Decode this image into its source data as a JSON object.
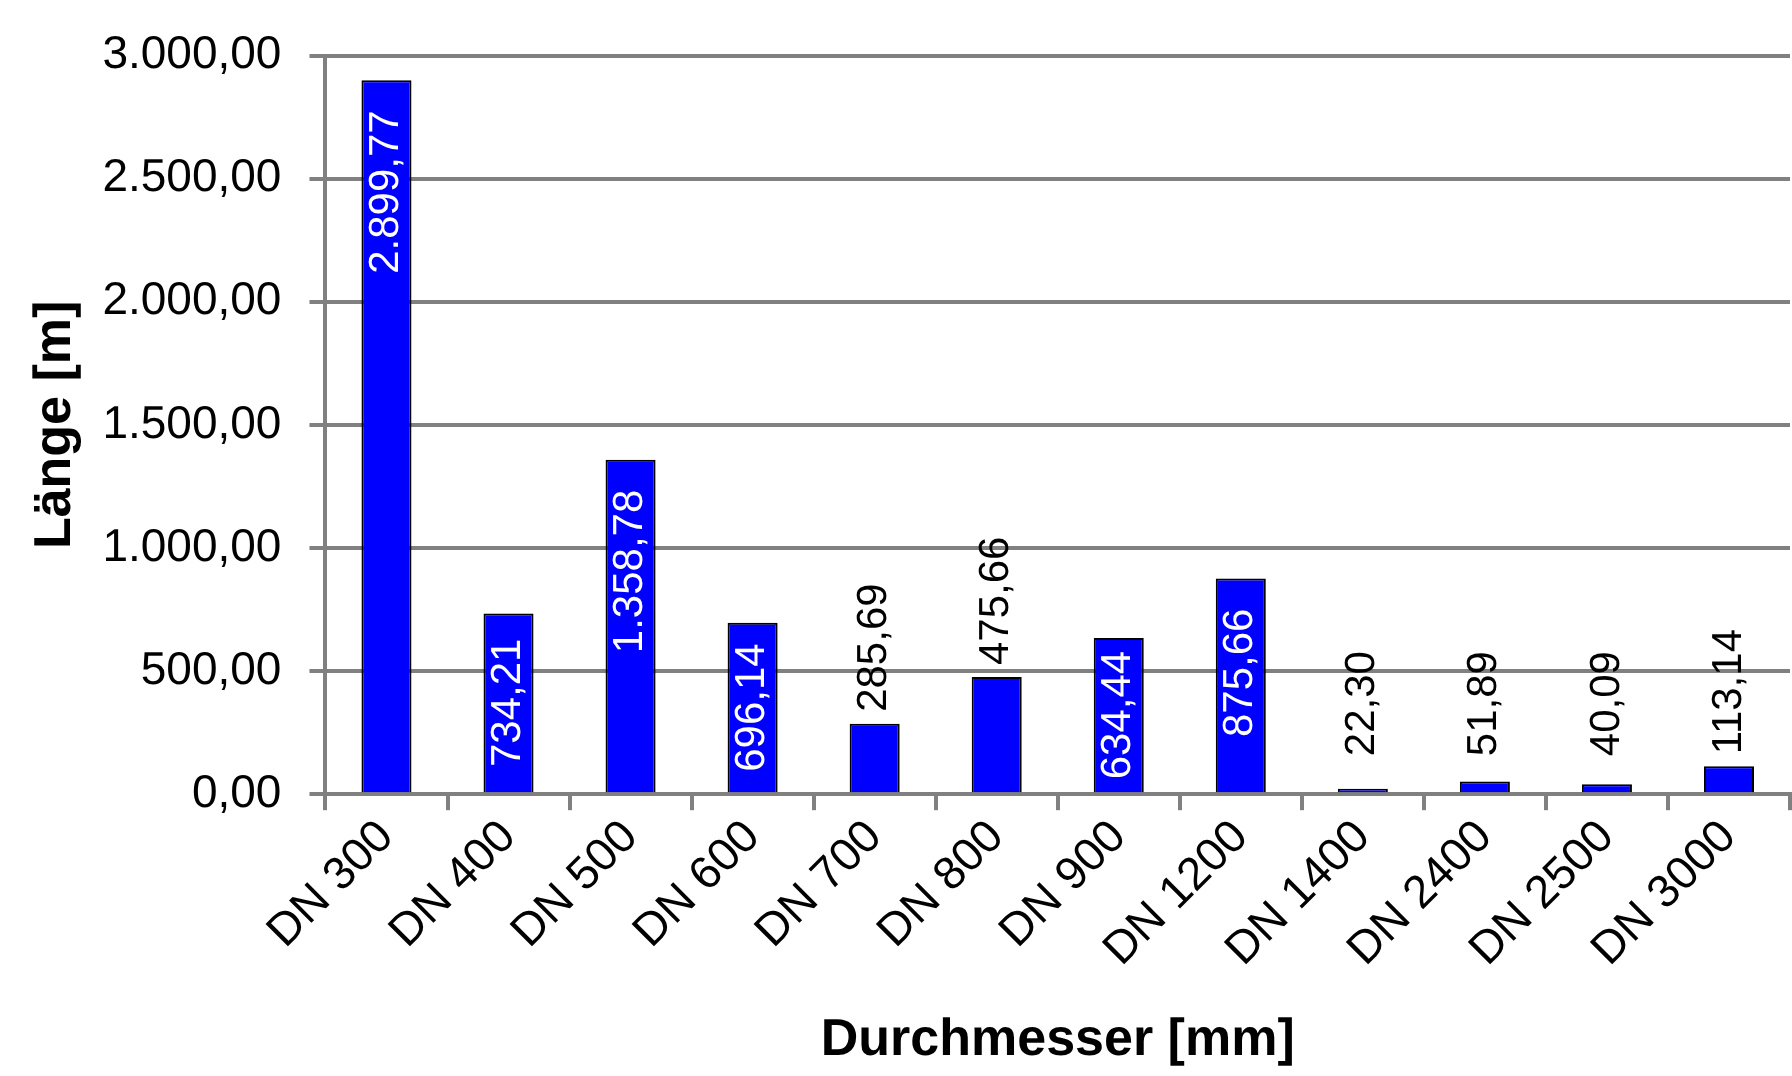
{
  "chart_data": {
    "type": "bar",
    "xlabel": "Durchmesser [mm]",
    "ylabel": "Länge [m]",
    "categories": [
      "DN 300",
      "DN 400",
      "DN 500",
      "DN 600",
      "DN 700",
      "DN 800",
      "DN 900",
      "DN 1200",
      "DN 1400",
      "DN 2400",
      "DN 2500",
      "DN 3000"
    ],
    "values": [
      2899.77,
      734.21,
      1358.78,
      696.14,
      285.69,
      475.66,
      634.44,
      875.66,
      22.3,
      51.89,
      40.09,
      113.14
    ],
    "value_labels": [
      "2.899,77",
      "734,21",
      "1.358,78",
      "696,14",
      "285,69",
      "475,66",
      "634,44",
      "875,66",
      "22,30",
      "51,89",
      "40,09",
      "113,14"
    ],
    "color": "#0000ff",
    "ylim": [
      0,
      3000
    ],
    "yticks": [
      {
        "value": 0,
        "label": "0,00"
      },
      {
        "value": 500,
        "label": "500,00"
      },
      {
        "value": 1000,
        "label": "1.000,00"
      },
      {
        "value": 1500,
        "label": "1.500,00"
      },
      {
        "value": 2000,
        "label": "2.000,00"
      },
      {
        "value": 2500,
        "label": "2.500,00"
      },
      {
        "value": 3000,
        "label": "3.000,00"
      }
    ],
    "grid": "y",
    "legend": false
  }
}
